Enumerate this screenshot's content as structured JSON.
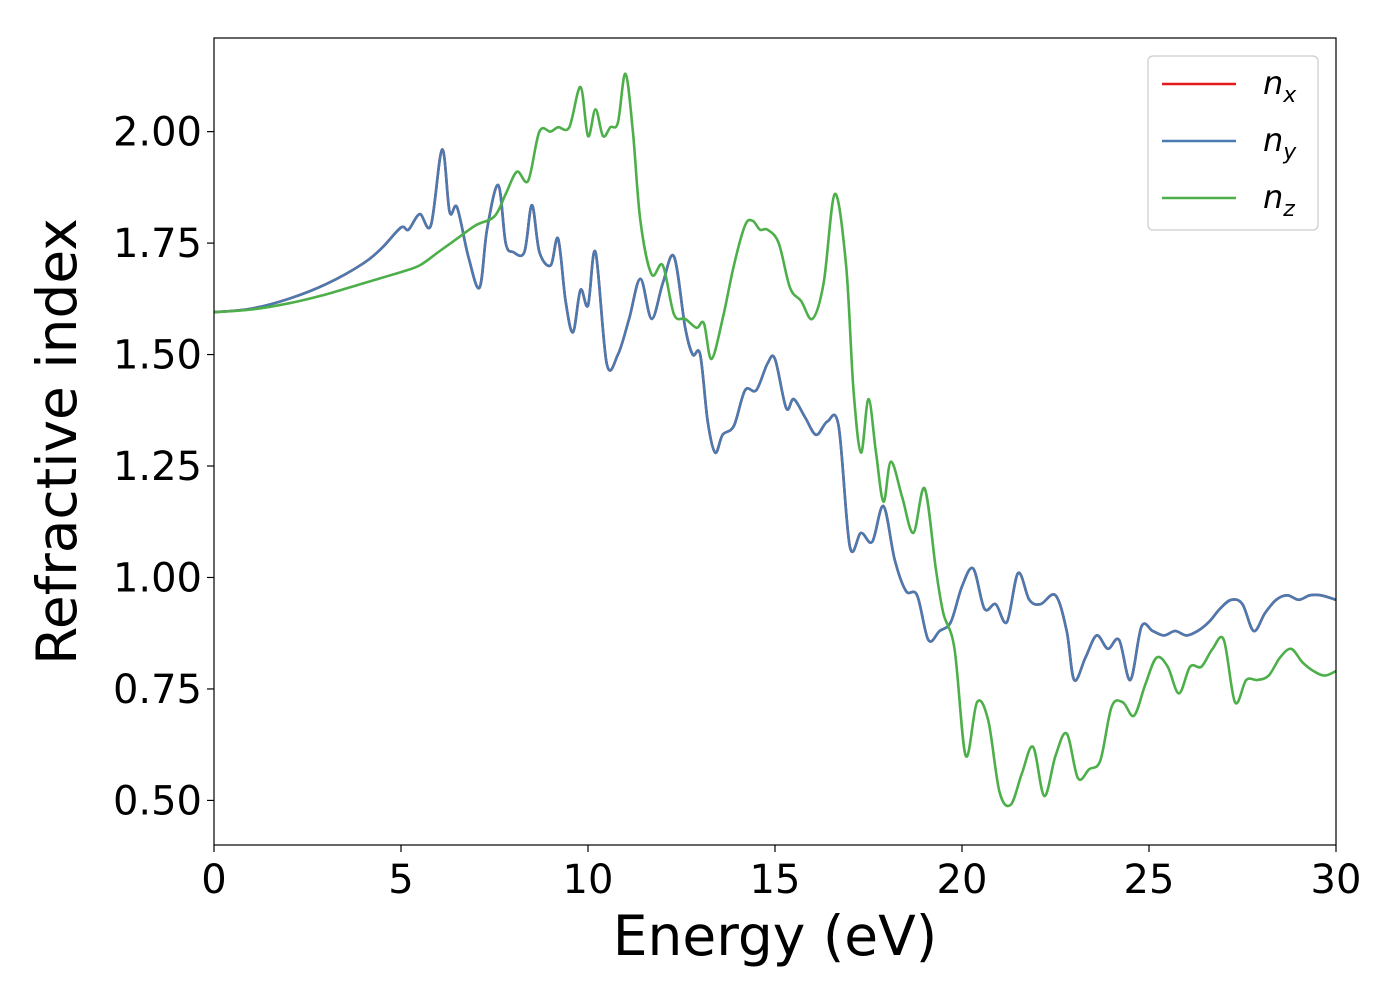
{
  "chart_data": {
    "type": "line",
    "title": "",
    "xlabel": "Energy (eV)",
    "ylabel": "Refractive index",
    "xlim": [
      0,
      30
    ],
    "ylim": [
      0.4,
      2.21
    ],
    "xticks": [
      0,
      5,
      10,
      15,
      20,
      25,
      30
    ],
    "xtick_labels": [
      "0",
      "5",
      "10",
      "15",
      "20",
      "25",
      "30"
    ],
    "yticks": [
      0.5,
      0.75,
      1.0,
      1.25,
      1.5,
      1.75,
      2.0
    ],
    "ytick_labels": [
      "0.50",
      "0.75",
      "1.00",
      "1.25",
      "1.50",
      "1.75",
      "2.00"
    ],
    "grid": false,
    "legend_position": "top-right",
    "series": [
      {
        "name": "n_x",
        "symbol": "n",
        "subscript": "x",
        "color": "#e41a1c",
        "x": [
          0,
          1,
          2,
          3,
          4,
          4.5,
          5.0,
          5.2,
          5.5,
          5.8,
          6.1,
          6.3,
          6.5,
          6.8,
          7.1,
          7.3,
          7.6,
          7.8,
          8.0,
          8.3,
          8.5,
          8.7,
          9.0,
          9.2,
          9.4,
          9.6,
          9.8,
          10.0,
          10.2,
          10.5,
          10.8,
          11.1,
          11.4,
          11.7,
          12.0,
          12.3,
          12.6,
          12.8,
          13.0,
          13.2,
          13.4,
          13.6,
          13.9,
          14.2,
          14.5,
          14.8,
          15.0,
          15.3,
          15.5,
          15.8,
          16.1,
          16.4,
          16.7,
          17.0,
          17.3,
          17.6,
          17.9,
          18.2,
          18.5,
          18.8,
          19.1,
          19.4,
          19.7,
          20.0,
          20.3,
          20.6,
          20.9,
          21.2,
          21.5,
          21.8,
          22.1,
          22.5,
          22.8,
          23.0,
          23.3,
          23.6,
          23.9,
          24.2,
          24.5,
          24.8,
          25.1,
          25.4,
          25.7,
          26.0,
          26.3,
          26.6,
          26.9,
          27.2,
          27.5,
          27.8,
          28.1,
          28.4,
          28.7,
          29.0,
          29.3,
          29.6,
          30.0
        ],
        "y": [
          1.595,
          1.603,
          1.625,
          1.658,
          1.705,
          1.74,
          1.785,
          1.78,
          1.815,
          1.79,
          1.96,
          1.82,
          1.83,
          1.72,
          1.65,
          1.78,
          1.88,
          1.75,
          1.73,
          1.73,
          1.835,
          1.73,
          1.7,
          1.76,
          1.62,
          1.55,
          1.645,
          1.61,
          1.73,
          1.48,
          1.5,
          1.58,
          1.67,
          1.58,
          1.66,
          1.72,
          1.56,
          1.5,
          1.5,
          1.35,
          1.28,
          1.32,
          1.34,
          1.42,
          1.42,
          1.48,
          1.49,
          1.38,
          1.4,
          1.36,
          1.32,
          1.35,
          1.34,
          1.07,
          1.1,
          1.08,
          1.16,
          1.04,
          0.97,
          0.96,
          0.86,
          0.88,
          0.9,
          0.98,
          1.02,
          0.93,
          0.94,
          0.9,
          1.01,
          0.95,
          0.94,
          0.96,
          0.88,
          0.77,
          0.82,
          0.87,
          0.84,
          0.86,
          0.77,
          0.89,
          0.88,
          0.87,
          0.88,
          0.87,
          0.88,
          0.9,
          0.93,
          0.95,
          0.94,
          0.88,
          0.92,
          0.95,
          0.96,
          0.95,
          0.96,
          0.96,
          0.95
        ]
      },
      {
        "name": "n_y",
        "symbol": "n",
        "subscript": "y",
        "color": "#4a7ab0",
        "x": [
          0,
          1,
          2,
          3,
          4,
          4.5,
          5.0,
          5.2,
          5.5,
          5.8,
          6.1,
          6.3,
          6.5,
          6.8,
          7.1,
          7.3,
          7.6,
          7.8,
          8.0,
          8.3,
          8.5,
          8.7,
          9.0,
          9.2,
          9.4,
          9.6,
          9.8,
          10.0,
          10.2,
          10.5,
          10.8,
          11.1,
          11.4,
          11.7,
          12.0,
          12.3,
          12.6,
          12.8,
          13.0,
          13.2,
          13.4,
          13.6,
          13.9,
          14.2,
          14.5,
          14.8,
          15.0,
          15.3,
          15.5,
          15.8,
          16.1,
          16.4,
          16.7,
          17.0,
          17.3,
          17.6,
          17.9,
          18.2,
          18.5,
          18.8,
          19.1,
          19.4,
          19.7,
          20.0,
          20.3,
          20.6,
          20.9,
          21.2,
          21.5,
          21.8,
          22.1,
          22.5,
          22.8,
          23.0,
          23.3,
          23.6,
          23.9,
          24.2,
          24.5,
          24.8,
          25.1,
          25.4,
          25.7,
          26.0,
          26.3,
          26.6,
          26.9,
          27.2,
          27.5,
          27.8,
          28.1,
          28.4,
          28.7,
          29.0,
          29.3,
          29.6,
          30.0
        ],
        "y": [
          1.595,
          1.603,
          1.625,
          1.658,
          1.705,
          1.74,
          1.785,
          1.78,
          1.815,
          1.79,
          1.96,
          1.82,
          1.83,
          1.72,
          1.65,
          1.78,
          1.88,
          1.75,
          1.73,
          1.73,
          1.835,
          1.73,
          1.7,
          1.76,
          1.62,
          1.55,
          1.645,
          1.61,
          1.73,
          1.48,
          1.5,
          1.58,
          1.67,
          1.58,
          1.66,
          1.72,
          1.56,
          1.5,
          1.5,
          1.35,
          1.28,
          1.32,
          1.34,
          1.42,
          1.42,
          1.48,
          1.49,
          1.38,
          1.4,
          1.36,
          1.32,
          1.35,
          1.34,
          1.07,
          1.1,
          1.08,
          1.16,
          1.04,
          0.97,
          0.96,
          0.86,
          0.88,
          0.9,
          0.98,
          1.02,
          0.93,
          0.94,
          0.9,
          1.01,
          0.95,
          0.94,
          0.96,
          0.88,
          0.77,
          0.82,
          0.87,
          0.84,
          0.86,
          0.77,
          0.89,
          0.88,
          0.87,
          0.88,
          0.87,
          0.88,
          0.9,
          0.93,
          0.95,
          0.94,
          0.88,
          0.92,
          0.95,
          0.96,
          0.95,
          0.96,
          0.96,
          0.95
        ]
      },
      {
        "name": "n_z",
        "symbol": "n",
        "subscript": "z",
        "color": "#4daf4a",
        "x": [
          0,
          1,
          2,
          3,
          4,
          5.0,
          5.5,
          6.0,
          6.5,
          7.0,
          7.5,
          7.8,
          8.1,
          8.4,
          8.7,
          9.0,
          9.2,
          9.5,
          9.8,
          10.0,
          10.2,
          10.4,
          10.6,
          10.8,
          11.0,
          11.2,
          11.4,
          11.7,
          12.0,
          12.3,
          12.6,
          12.9,
          13.1,
          13.3,
          13.6,
          13.9,
          14.2,
          14.4,
          14.6,
          14.8,
          15.1,
          15.4,
          15.7,
          16.0,
          16.3,
          16.6,
          16.9,
          17.1,
          17.3,
          17.5,
          17.7,
          17.9,
          18.1,
          18.4,
          18.7,
          19.0,
          19.3,
          19.5,
          19.8,
          20.1,
          20.4,
          20.7,
          21.0,
          21.3,
          21.6,
          21.9,
          22.2,
          22.5,
          22.8,
          23.1,
          23.4,
          23.7,
          24.0,
          24.3,
          24.6,
          24.9,
          25.2,
          25.5,
          25.8,
          26.1,
          26.4,
          26.7,
          27.0,
          27.3,
          27.6,
          27.9,
          28.2,
          28.5,
          28.8,
          29.1,
          29.4,
          29.7,
          30.0
        ],
        "y": [
          1.595,
          1.601,
          1.615,
          1.635,
          1.66,
          1.685,
          1.7,
          1.73,
          1.76,
          1.79,
          1.81,
          1.86,
          1.91,
          1.89,
          2.0,
          2.0,
          2.01,
          2.01,
          2.1,
          1.99,
          2.05,
          1.99,
          2.01,
          2.02,
          2.13,
          2.0,
          1.8,
          1.68,
          1.7,
          1.59,
          1.58,
          1.56,
          1.57,
          1.49,
          1.58,
          1.7,
          1.79,
          1.8,
          1.78,
          1.78,
          1.75,
          1.65,
          1.62,
          1.58,
          1.66,
          1.86,
          1.7,
          1.42,
          1.28,
          1.4,
          1.28,
          1.17,
          1.26,
          1.18,
          1.1,
          1.2,
          1.02,
          0.92,
          0.84,
          0.6,
          0.72,
          0.68,
          0.52,
          0.49,
          0.56,
          0.62,
          0.51,
          0.6,
          0.65,
          0.55,
          0.57,
          0.59,
          0.71,
          0.72,
          0.69,
          0.76,
          0.82,
          0.8,
          0.74,
          0.8,
          0.8,
          0.84,
          0.86,
          0.72,
          0.77,
          0.77,
          0.78,
          0.82,
          0.84,
          0.81,
          0.79,
          0.78,
          0.79
        ]
      }
    ]
  }
}
